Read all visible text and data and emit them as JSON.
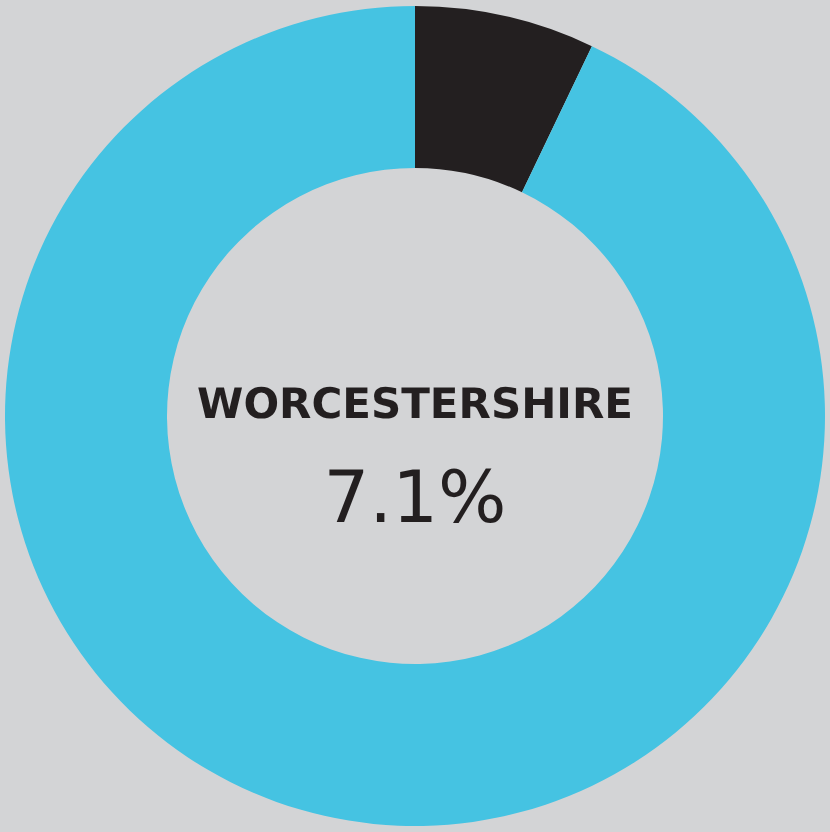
{
  "chart_data": {
    "type": "donut",
    "title": "WORCESTERSHIRE",
    "categories": [
      null,
      null
    ],
    "values": [
      7.1,
      92.9
    ],
    "colors": [
      "#231f20",
      "#45c3e2"
    ],
    "annotations": [
      "7.1%"
    ]
  }
}
